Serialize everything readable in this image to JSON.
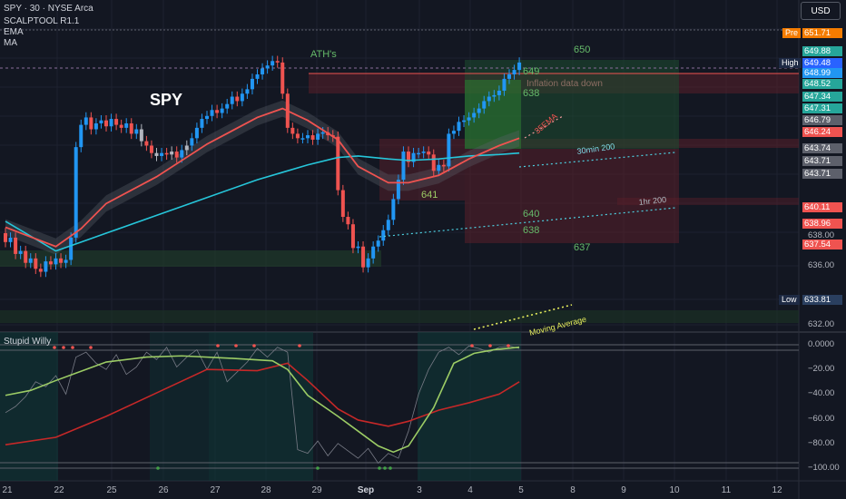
{
  "header": {
    "symbol_line": "SPY · 30 · NYSE Arca",
    "indicators": [
      "SCALPTOOL R1.1",
      "EMA",
      "MA"
    ],
    "currency_button": "USD",
    "oscillator_title": "Stupid Willy"
  },
  "chart_data": [
    {
      "type": "candlestick",
      "title": "SPY",
      "x_ticks": [
        "21",
        "22",
        "25",
        "26",
        "27",
        "28",
        "29",
        "Sep",
        "3",
        "4",
        "5",
        "8",
        "9",
        "10",
        "11",
        "12"
      ],
      "y_ticks": [
        636.0,
        638.0,
        632.0
      ],
      "annotations": [
        "ATH's",
        "650",
        "649",
        "638",
        "641",
        "640",
        "638",
        "637",
        "Inflation data down",
        "35EMA",
        "30min 200",
        "1hr 200",
        "Moving Average"
      ],
      "price_labels": [
        {
          "prefix": "Pre",
          "value": "651.71",
          "color": "#f57c00"
        },
        {
          "prefix": "High",
          "value": "649.48",
          "color": "#2962ff"
        },
        {
          "prefix": "",
          "value": "649.88",
          "color": "#26a69a"
        },
        {
          "prefix": "",
          "value": "648.99",
          "color": "#2196f3"
        },
        {
          "prefix": "",
          "value": "648.52",
          "color": "#26a69a"
        },
        {
          "prefix": "",
          "value": "647.34",
          "color": "#26a69a"
        },
        {
          "prefix": "",
          "value": "647.31",
          "color": "#26a69a"
        },
        {
          "prefix": "",
          "value": "646.79",
          "color": "#5d606b"
        },
        {
          "prefix": "",
          "value": "646.24",
          "color": "#ef5350"
        },
        {
          "prefix": "",
          "value": "643.74",
          "color": "#5d606b"
        },
        {
          "prefix": "",
          "value": "643.71",
          "color": "#5d606b"
        },
        {
          "prefix": "",
          "value": "643.71",
          "color": "#5d606b"
        },
        {
          "prefix": "",
          "value": "640.11",
          "color": "#ef5350"
        },
        {
          "prefix": "",
          "value": "638.96",
          "color": "#ef5350"
        },
        {
          "prefix": "",
          "value": "637.54",
          "color": "#ef5350"
        },
        {
          "prefix": "Low",
          "value": "633.81",
          "color": "#2a3f5f"
        }
      ],
      "series": [
        {
          "name": "SPY",
          "kind": "candles",
          "x": [
            0,
            1,
            2,
            3,
            4,
            5,
            6,
            7,
            8,
            9,
            10,
            11,
            12,
            13,
            14,
            15,
            16,
            17,
            18,
            19,
            20,
            21,
            22,
            23,
            24,
            25,
            26,
            27,
            28,
            29,
            30,
            31,
            32,
            33,
            34,
            35,
            36,
            37,
            38,
            39,
            40,
            41,
            42,
            43,
            44,
            45,
            46,
            47,
            48,
            49,
            50,
            51,
            52,
            53,
            54,
            55,
            56,
            57,
            58,
            59,
            60,
            61,
            62,
            63,
            64,
            65,
            66,
            67,
            68,
            69,
            70,
            71,
            72,
            73,
            74,
            75,
            76,
            77,
            78,
            79,
            80,
            81,
            82,
            83,
            84,
            85,
            86,
            87,
            88,
            89,
            90,
            91,
            92,
            93,
            94,
            95,
            96,
            97,
            98,
            99,
            100,
            101,
            102
          ],
          "open": [
            638.2,
            637.6,
            637.9,
            636.8,
            637.0,
            636.2,
            636.5,
            635.8,
            635.6,
            636.3,
            636.1,
            636.5,
            636.2,
            636.4,
            637.9,
            644.0,
            645.5,
            646.0,
            645.2,
            645.6,
            645.8,
            645.4,
            645.9,
            645.5,
            645.3,
            645.6,
            644.9,
            645.2,
            644.4,
            644.1,
            643.6,
            643.4,
            643.6,
            643.5,
            643.7,
            643.3,
            643.8,
            644.1,
            644.6,
            645.3,
            645.9,
            646.1,
            646.5,
            646.3,
            646.6,
            646.9,
            647.4,
            647.1,
            647.6,
            647.9,
            648.6,
            648.9,
            649.3,
            649.5,
            649.8,
            649.7,
            647.6,
            645.3,
            644.9,
            644.6,
            644.6,
            644.8,
            644.5,
            644.9,
            645.0,
            644.8,
            644.7,
            641.1,
            639.3,
            638.8,
            637.2,
            637.3,
            635.9,
            636.5,
            637.3,
            637.7,
            638.4,
            639.1,
            640.5,
            641.8,
            643.7,
            643.0,
            643.6,
            643.6,
            643.7,
            643.5,
            642.4,
            642.8,
            642.7,
            644.9,
            645.1,
            645.7,
            645.8,
            646.0,
            646.3,
            646.6,
            647.1,
            647.4,
            647.5,
            647.8,
            648.6,
            648.9,
            649.2
          ],
          "close": [
            637.6,
            637.9,
            636.8,
            637.0,
            636.2,
            636.5,
            635.8,
            635.6,
            636.3,
            636.1,
            636.5,
            636.2,
            636.4,
            637.9,
            644.0,
            645.5,
            646.0,
            645.2,
            645.6,
            645.8,
            645.4,
            645.9,
            645.5,
            645.3,
            645.6,
            644.9,
            645.2,
            644.4,
            644.1,
            643.6,
            643.4,
            643.6,
            643.5,
            643.7,
            643.3,
            643.8,
            644.1,
            644.6,
            645.3,
            645.9,
            646.1,
            646.5,
            646.3,
            646.6,
            646.9,
            647.4,
            647.1,
            647.6,
            647.9,
            648.6,
            648.9,
            649.3,
            649.5,
            649.8,
            649.7,
            647.6,
            645.3,
            644.9,
            644.6,
            644.6,
            644.8,
            644.5,
            644.9,
            645.0,
            644.8,
            644.7,
            641.1,
            639.3,
            638.8,
            637.2,
            637.3,
            635.9,
            636.5,
            637.3,
            637.7,
            638.4,
            639.1,
            640.5,
            641.8,
            643.7,
            643.0,
            643.6,
            643.6,
            643.7,
            643.5,
            642.4,
            642.8,
            642.7,
            644.9,
            645.1,
            645.7,
            645.8,
            646.0,
            646.3,
            646.6,
            647.1,
            647.4,
            647.5,
            647.8,
            648.6,
            648.9,
            649.2,
            649.7
          ]
        },
        {
          "name": "EMA",
          "kind": "line",
          "x": [
            0,
            10,
            15,
            20,
            30,
            40,
            50,
            55,
            60,
            66,
            70,
            76,
            80,
            86,
            92,
            98,
            102
          ],
          "y": [
            638.6,
            637.3,
            638.5,
            640.2,
            642.0,
            644.2,
            646.0,
            646.6,
            645.8,
            644.5,
            642.7,
            641.6,
            641.6,
            642.1,
            643.2,
            644.1,
            644.6
          ]
        },
        {
          "name": "MA",
          "kind": "line",
          "x": [
            0,
            10,
            15,
            20,
            30,
            40,
            50,
            55,
            60,
            66,
            70,
            76,
            80,
            86,
            92,
            98,
            102
          ],
          "y": [
            639.0,
            637.0,
            637.6,
            638.2,
            639.4,
            640.6,
            641.8,
            642.3,
            642.8,
            643.3,
            643.4,
            643.2,
            643.1,
            643.2,
            643.4,
            643.5,
            643.6
          ]
        }
      ]
    },
    {
      "type": "line",
      "title": "Stupid Willy",
      "y_ticks": [
        "0.0000",
        "−20.00",
        "−40.00",
        "−60.00",
        "−80.00",
        "−100.00"
      ],
      "ylim": [
        -105,
        5
      ],
      "series": [
        {
          "name": "fast",
          "kind": "line",
          "x": [
            0,
            5,
            10,
            14,
            20,
            28,
            35,
            45,
            53,
            56,
            60,
            66,
            70,
            74,
            77,
            80,
            85,
            89,
            93,
            97,
            102
          ],
          "y": [
            -41,
            -37,
            -29,
            -23,
            -14,
            -10,
            -9,
            -11,
            -13,
            -20,
            -41,
            -58,
            -70,
            -82,
            -87,
            -82,
            -51,
            -15,
            -7,
            -4,
            -2
          ]
        },
        {
          "name": "slow",
          "kind": "line",
          "x": [
            0,
            10,
            20,
            30,
            40,
            50,
            56,
            60,
            66,
            70,
            76,
            80,
            86,
            92,
            98,
            102
          ],
          "y": [
            -81,
            -75,
            -58,
            -39,
            -20,
            -21,
            -15,
            -29,
            -52,
            -61,
            -66,
            -62,
            -53,
            -47,
            -40,
            -30
          ]
        },
        {
          "name": "raw",
          "kind": "line",
          "x": [
            0,
            2,
            4,
            6,
            8,
            10,
            12,
            14,
            16,
            18,
            20,
            22,
            24,
            26,
            28,
            30,
            32,
            34,
            36,
            38,
            40,
            42,
            44,
            46,
            48,
            50,
            52,
            54,
            56,
            58,
            60,
            62,
            64,
            66,
            68,
            70,
            72,
            74,
            76,
            78,
            80,
            82,
            84,
            86,
            88,
            90,
            92,
            94,
            96,
            98,
            100,
            102
          ],
          "y": [
            -55,
            -50,
            -42,
            -30,
            -34,
            -25,
            -40,
            -10,
            -6,
            -15,
            -20,
            -8,
            -24,
            -18,
            -6,
            -12,
            -2,
            -18,
            -10,
            -4,
            -20,
            -6,
            -30,
            -22,
            -14,
            -3,
            -10,
            -2,
            -6,
            -85,
            -88,
            -78,
            -90,
            -80,
            -86,
            -92,
            -84,
            -96,
            -88,
            -92,
            -70,
            -40,
            -20,
            -6,
            -2,
            -8,
            -1,
            -3,
            -6,
            -2,
            -1,
            -3
          ]
        }
      ]
    }
  ]
}
